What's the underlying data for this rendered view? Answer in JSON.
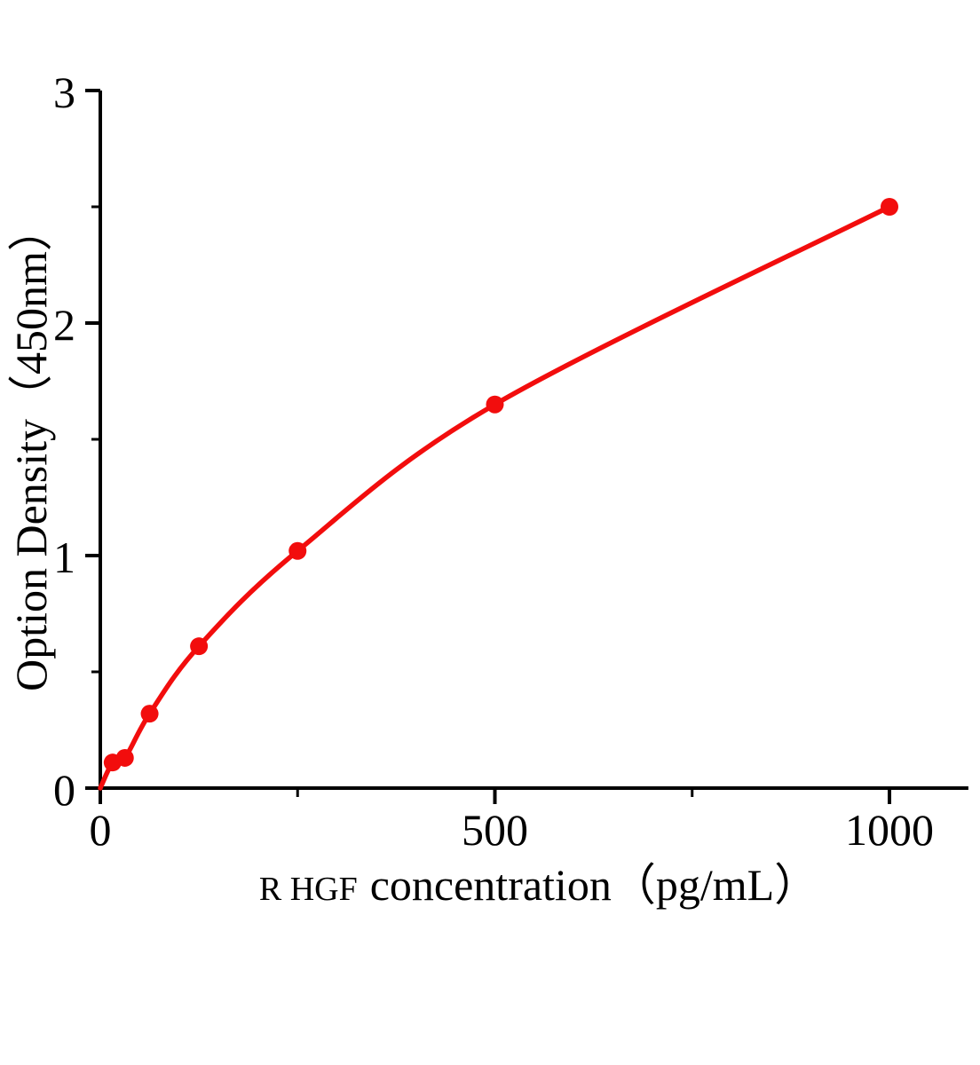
{
  "chart_data": {
    "type": "line",
    "title": "",
    "xlabel_prefix": "R HGF",
    "xlabel_main": "concentration（pg/mL）",
    "ylabel": "Option Density（450nm）",
    "points": [
      {
        "x": 0,
        "y": 0
      },
      {
        "x": 15.6,
        "y": 0.11
      },
      {
        "x": 31.2,
        "y": 0.13
      },
      {
        "x": 62.5,
        "y": 0.32
      },
      {
        "x": 125,
        "y": 0.61
      },
      {
        "x": 250,
        "y": 1.02
      },
      {
        "x": 500,
        "y": 1.65
      },
      {
        "x": 1000,
        "y": 2.5
      }
    ],
    "marker_start_index": 1,
    "xlim": [
      0,
      1100
    ],
    "ylim": [
      0,
      3
    ],
    "x_major_ticks": [
      0,
      500,
      1000
    ],
    "x_minor_ticks": [
      250,
      750
    ],
    "y_major_ticks": [
      0,
      1,
      2,
      3
    ],
    "y_minor_ticks": [
      0.5,
      1.5,
      2.5
    ],
    "grid": false,
    "legend": false,
    "line_color": "#f20d0d",
    "marker_color": "#f20d0d",
    "axis_color": "#000000"
  }
}
